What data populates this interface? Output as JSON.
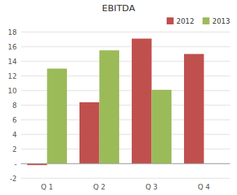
{
  "chart_data": {
    "type": "bar",
    "title": "EBITDA",
    "categories": [
      "Q 1",
      "Q 2",
      "Q 3",
      "Q 4"
    ],
    "series": [
      {
        "name": "2012",
        "color": "#C0504D",
        "values": [
          -0.2,
          8.4,
          17.1,
          15.0
        ]
      },
      {
        "name": "2013",
        "color": "#9BBB59",
        "values": [
          13.0,
          15.5,
          10.1,
          null
        ]
      }
    ],
    "ylim": [
      -2,
      18
    ],
    "yticks": [
      -2,
      {
        "value": 0,
        "label": "-"
      },
      2,
      4,
      6,
      8,
      10,
      12,
      14,
      16,
      18
    ],
    "grid": true,
    "legend": "upper right"
  }
}
